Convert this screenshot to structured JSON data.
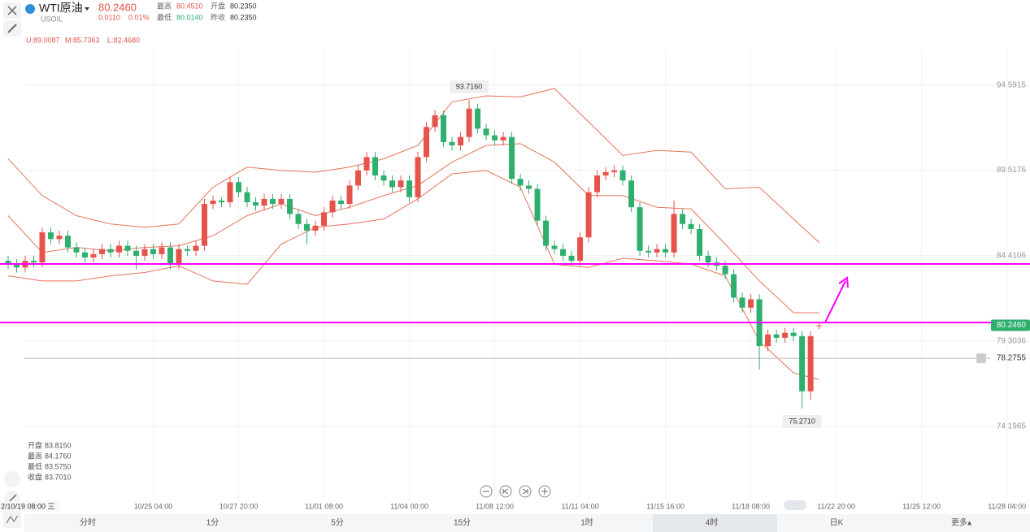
{
  "header": {
    "symbol": "WTI原油",
    "code": "USOIL",
    "price": "80.2460",
    "change": "0.0110",
    "change_pct": "0.01%",
    "high_label": "最高",
    "high": "80.4510",
    "open_label": "开盘",
    "open": "80.2350",
    "low_label": "最低",
    "low": "80.0140",
    "prev_close_label": "昨收",
    "prev_close": "80.2350"
  },
  "indicator": [
    "U:89.0087",
    "M:85.7363",
    "L:82.4680"
  ],
  "ohlc_info": [
    [
      "开盘",
      "83.8150"
    ],
    [
      "最高",
      "84.1760"
    ],
    [
      "最低",
      "83.5750"
    ],
    [
      "收盘",
      "83.7010"
    ]
  ],
  "crosshair_time": "2/10/19 08:00 三",
  "tabs": [
    "分时",
    "1分",
    "5分",
    "15分",
    "1时",
    "4时",
    "日K",
    "更多▴"
  ],
  "chart_data": {
    "type": "candlestick",
    "up_color": "#e5534b",
    "down_color": "#2eaf6e",
    "open": [
      84.1,
      83.9,
      83.7,
      84.1,
      84.0,
      85.8,
      85.4,
      85.6,
      84.9,
      84.6,
      84.3,
      84.5,
      84.8,
      84.6,
      85.0,
      84.7,
      84.4,
      84.8,
      84.5,
      84.9,
      83.9,
      84.8,
      84.7,
      85.0,
      87.5,
      87.7,
      87.6,
      88.8,
      88.2,
      87.6,
      87.4,
      87.8,
      87.5,
      87.8,
      86.9,
      86.3,
      85.9,
      86.2,
      87.0,
      87.7,
      87.5,
      88.6,
      89.5,
      90.3,
      89.2,
      88.9,
      88.5,
      88.9,
      87.9,
      90.3,
      92.1,
      92.8,
      91.2,
      91.0,
      91.5,
      93.2,
      92.0,
      91.6,
      91.3,
      91.5,
      89.0,
      88.6,
      88.4,
      86.5,
      85.0,
      84.8,
      84.4,
      84.1,
      85.5,
      88.2,
      89.2,
      89.4,
      89.5,
      88.9,
      87.3,
      84.7,
      84.6,
      84.8,
      84.6,
      86.9,
      86.3,
      86.0,
      84.4,
      84.0,
      83.8,
      83.3,
      81.9,
      81.3,
      81.8,
      79.0,
      79.7,
      79.5,
      79.8,
      79.6,
      76.3,
      80.235
    ],
    "high": [
      84.4,
      84.2,
      84.4,
      84.4,
      86.1,
      86.1,
      85.9,
      85.9,
      85.2,
      84.9,
      84.8,
      85.1,
      85.1,
      85.3,
      85.3,
      85.0,
      85.1,
      85.1,
      85.2,
      85.2,
      85.1,
      85.0,
      85.3,
      87.8,
      88.0,
      87.9,
      89.1,
      89.1,
      88.5,
      87.9,
      88.1,
      88.1,
      88.1,
      88.1,
      87.2,
      86.6,
      86.5,
      87.3,
      88.0,
      88.0,
      88.9,
      89.8,
      90.6,
      90.6,
      89.5,
      89.2,
      89.2,
      89.2,
      90.6,
      92.4,
      93.1,
      93.1,
      91.5,
      91.8,
      93.716,
      93.5,
      92.3,
      91.9,
      91.8,
      91.8,
      89.3,
      88.9,
      88.7,
      86.8,
      85.3,
      85.1,
      84.7,
      85.8,
      88.5,
      89.5,
      89.7,
      89.8,
      89.8,
      89.2,
      87.6,
      85.0,
      85.1,
      85.1,
      87.7,
      87.2,
      86.6,
      86.3,
      84.7,
      84.3,
      84.1,
      83.6,
      82.2,
      82.1,
      82.1,
      80.0,
      80.0,
      80.1,
      80.1,
      79.9,
      79.9,
      80.451
    ],
    "low": [
      83.6,
      83.4,
      83.4,
      83.7,
      83.7,
      85.1,
      85.1,
      84.6,
      84.3,
      84.0,
      84.0,
      84.2,
      84.3,
      84.3,
      84.4,
      83.6,
      84.1,
      84.2,
      84.2,
      83.6,
      83.6,
      84.4,
      84.4,
      84.7,
      87.2,
      87.3,
      87.3,
      87.9,
      87.3,
      87.1,
      87.1,
      87.2,
      87.2,
      86.6,
      86.0,
      85.1,
      85.6,
      85.9,
      86.7,
      87.2,
      87.2,
      88.3,
      89.2,
      88.9,
      88.6,
      88.2,
      88.2,
      87.6,
      87.6,
      90.0,
      91.8,
      90.9,
      90.7,
      90.7,
      91.2,
      91.7,
      91.3,
      91.0,
      91.0,
      88.7,
      88.3,
      88.1,
      86.2,
      84.7,
      84.5,
      84.1,
      83.8,
      83.8,
      85.2,
      87.9,
      88.9,
      89.1,
      88.6,
      87.0,
      84.4,
      84.3,
      84.3,
      84.3,
      84.3,
      86.0,
      85.7,
      84.1,
      83.7,
      83.5,
      83.0,
      81.6,
      81.0,
      81.0,
      77.6,
      78.7,
      79.2,
      79.2,
      79.3,
      75.271,
      75.8,
      80.014
    ],
    "close": [
      83.9,
      83.7,
      84.1,
      84.0,
      85.8,
      85.4,
      85.6,
      84.9,
      84.6,
      84.3,
      84.5,
      84.8,
      84.6,
      85.0,
      84.7,
      84.4,
      84.8,
      84.5,
      84.9,
      83.9,
      84.8,
      84.7,
      85.0,
      87.5,
      87.7,
      87.6,
      88.8,
      88.2,
      87.6,
      87.4,
      87.8,
      87.5,
      87.8,
      86.9,
      86.3,
      85.9,
      86.2,
      87.0,
      87.7,
      87.5,
      88.6,
      89.5,
      90.3,
      89.2,
      88.9,
      88.5,
      88.9,
      87.9,
      90.3,
      92.1,
      92.8,
      91.2,
      91.0,
      91.5,
      93.2,
      92.0,
      91.6,
      91.3,
      91.5,
      89.0,
      88.6,
      88.4,
      86.5,
      85.0,
      84.8,
      84.4,
      84.1,
      85.5,
      88.2,
      89.2,
      89.4,
      89.5,
      88.9,
      87.3,
      84.7,
      84.6,
      84.8,
      84.6,
      86.9,
      86.3,
      86.0,
      84.4,
      84.0,
      83.8,
      83.3,
      81.9,
      81.3,
      81.8,
      79.0,
      79.7,
      79.5,
      79.8,
      79.6,
      76.3,
      79.6,
      80.246
    ],
    "bands": {
      "color": "#e8735a",
      "x": [
        0,
        4,
        8,
        12,
        16,
        20,
        24,
        28,
        32,
        36,
        40,
        44,
        48,
        52,
        56,
        60,
        64,
        68,
        72,
        76,
        80,
        84,
        88,
        92,
        95
      ],
      "upper": [
        90.2,
        88.0,
        86.8,
        86.3,
        86.1,
        86.3,
        88.5,
        89.7,
        89.5,
        89.4,
        89.7,
        90.2,
        91.0,
        93.6,
        93.96,
        93.9,
        94.4,
        92.4,
        90.4,
        90.7,
        90.6,
        88.4,
        88.5,
        86.6,
        85.2
      ],
      "mid": [
        86.8,
        84.6,
        84.9,
        84.7,
        84.9,
        85.0,
        85.6,
        86.8,
        87.5,
        86.8,
        87.3,
        88.0,
        88.6,
        90.0,
        91.0,
        91.1,
        90.0,
        88.0,
        88.0,
        87.3,
        87.2,
        85.1,
        82.9,
        81.0,
        81.0
      ],
      "lower": [
        83.2,
        82.9,
        82.9,
        83.2,
        83.4,
        83.8,
        82.9,
        82.7,
        85.1,
        86.1,
        86.3,
        86.6,
        87.8,
        89.3,
        89.5,
        88.5,
        83.9,
        83.7,
        84.25,
        84.1,
        83.9,
        83.2,
        79.3,
        77.4,
        77.0
      ]
    },
    "ylim": [
      70.56,
      99.69
    ],
    "yticks": [
      94.5915,
      89.5176,
      84.4106,
      79.3036,
      74.1965
    ],
    "xlim": [
      -0.95,
      119.7
    ],
    "xticks": [
      {
        "value": 17,
        "label": "10/25 04:00"
      },
      {
        "value": 27,
        "label": "10/27 20:00"
      },
      {
        "value": 37,
        "label": "11/01 08:00"
      },
      {
        "value": 47,
        "label": "11/04 00:00"
      },
      {
        "value": 57,
        "label": "11/08 12:00"
      },
      {
        "value": 67,
        "label": "11/11 04:00"
      },
      {
        "value": 77,
        "label": "11/15 16:00"
      },
      {
        "value": 87,
        "label": "11/18 08:00"
      },
      {
        "value": 97,
        "label": "11/22 20:00"
      },
      {
        "value": 107,
        "label": "11/25 12:00"
      },
      {
        "value": 117,
        "label": "11/28 04:00"
      }
    ],
    "max_marker": {
      "index": 54,
      "value": 93.716,
      "label": "93.7160"
    },
    "min_marker": {
      "index": 93,
      "value": 75.271,
      "label": "75.2710"
    },
    "hlines": [
      {
        "value": 83.91,
        "color": "#ff00ff"
      },
      {
        "value": 80.41,
        "color": "#ff00ff"
      }
    ],
    "last_price": {
      "value": 80.246,
      "label": "80.2460",
      "color": "#2eaf6e"
    },
    "alert_line": {
      "value": 78.2755,
      "color": "#bbbbbb"
    }
  }
}
